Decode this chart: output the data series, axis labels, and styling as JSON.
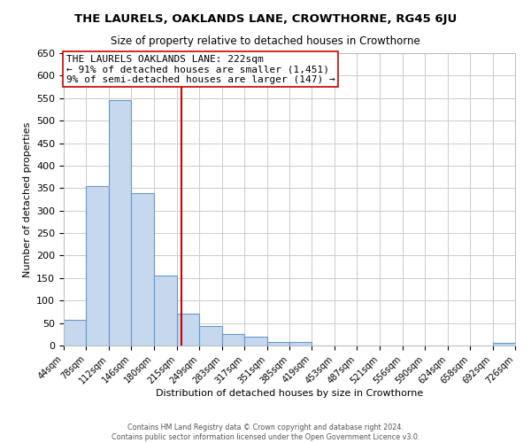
{
  "title": "THE LAURELS, OAKLANDS LANE, CROWTHORNE, RG45 6JU",
  "subtitle": "Size of property relative to detached houses in Crowthorne",
  "xlabel": "Distribution of detached houses by size in Crowthorne",
  "ylabel": "Number of detached properties",
  "bar_edges": [
    44,
    78,
    112,
    146,
    180,
    215,
    249,
    283,
    317,
    351,
    385,
    419,
    453,
    487,
    521,
    556,
    590,
    624,
    658,
    692,
    726
  ],
  "bar_heights": [
    57,
    355,
    545,
    338,
    155,
    70,
    43,
    25,
    20,
    8,
    8,
    0,
    0,
    0,
    0,
    0,
    0,
    0,
    0,
    5
  ],
  "bar_color": "#c5d8ee",
  "bar_edge_color": "#6699cc",
  "reference_line_x": 222,
  "reference_line_color": "#cc0000",
  "ylim": [
    0,
    650
  ],
  "yticks": [
    0,
    50,
    100,
    150,
    200,
    250,
    300,
    350,
    400,
    450,
    500,
    550,
    600,
    650
  ],
  "annotation_title": "THE LAURELS OAKLANDS LANE: 222sqm",
  "annotation_line1": "← 91% of detached houses are smaller (1,451)",
  "annotation_line2": "9% of semi-detached houses are larger (147) →",
  "footer_line1": "Contains HM Land Registry data © Crown copyright and database right 2024.",
  "footer_line2": "Contains public sector information licensed under the Open Government Licence v3.0.",
  "tick_labels": [
    "44sqm",
    "78sqm",
    "112sqm",
    "146sqm",
    "180sqm",
    "215sqm",
    "249sqm",
    "283sqm",
    "317sqm",
    "351sqm",
    "385sqm",
    "419sqm",
    "453sqm",
    "487sqm",
    "521sqm",
    "556sqm",
    "590sqm",
    "624sqm",
    "658sqm",
    "692sqm",
    "726sqm"
  ],
  "background_color": "#ffffff",
  "grid_color": "#cccccc",
  "title_fontsize": 9.5,
  "subtitle_fontsize": 8.5,
  "ylabel_fontsize": 8,
  "xlabel_fontsize": 8,
  "ytick_fontsize": 8,
  "xtick_fontsize": 7,
  "annot_fontsize": 8,
  "footer_fontsize": 5.8
}
